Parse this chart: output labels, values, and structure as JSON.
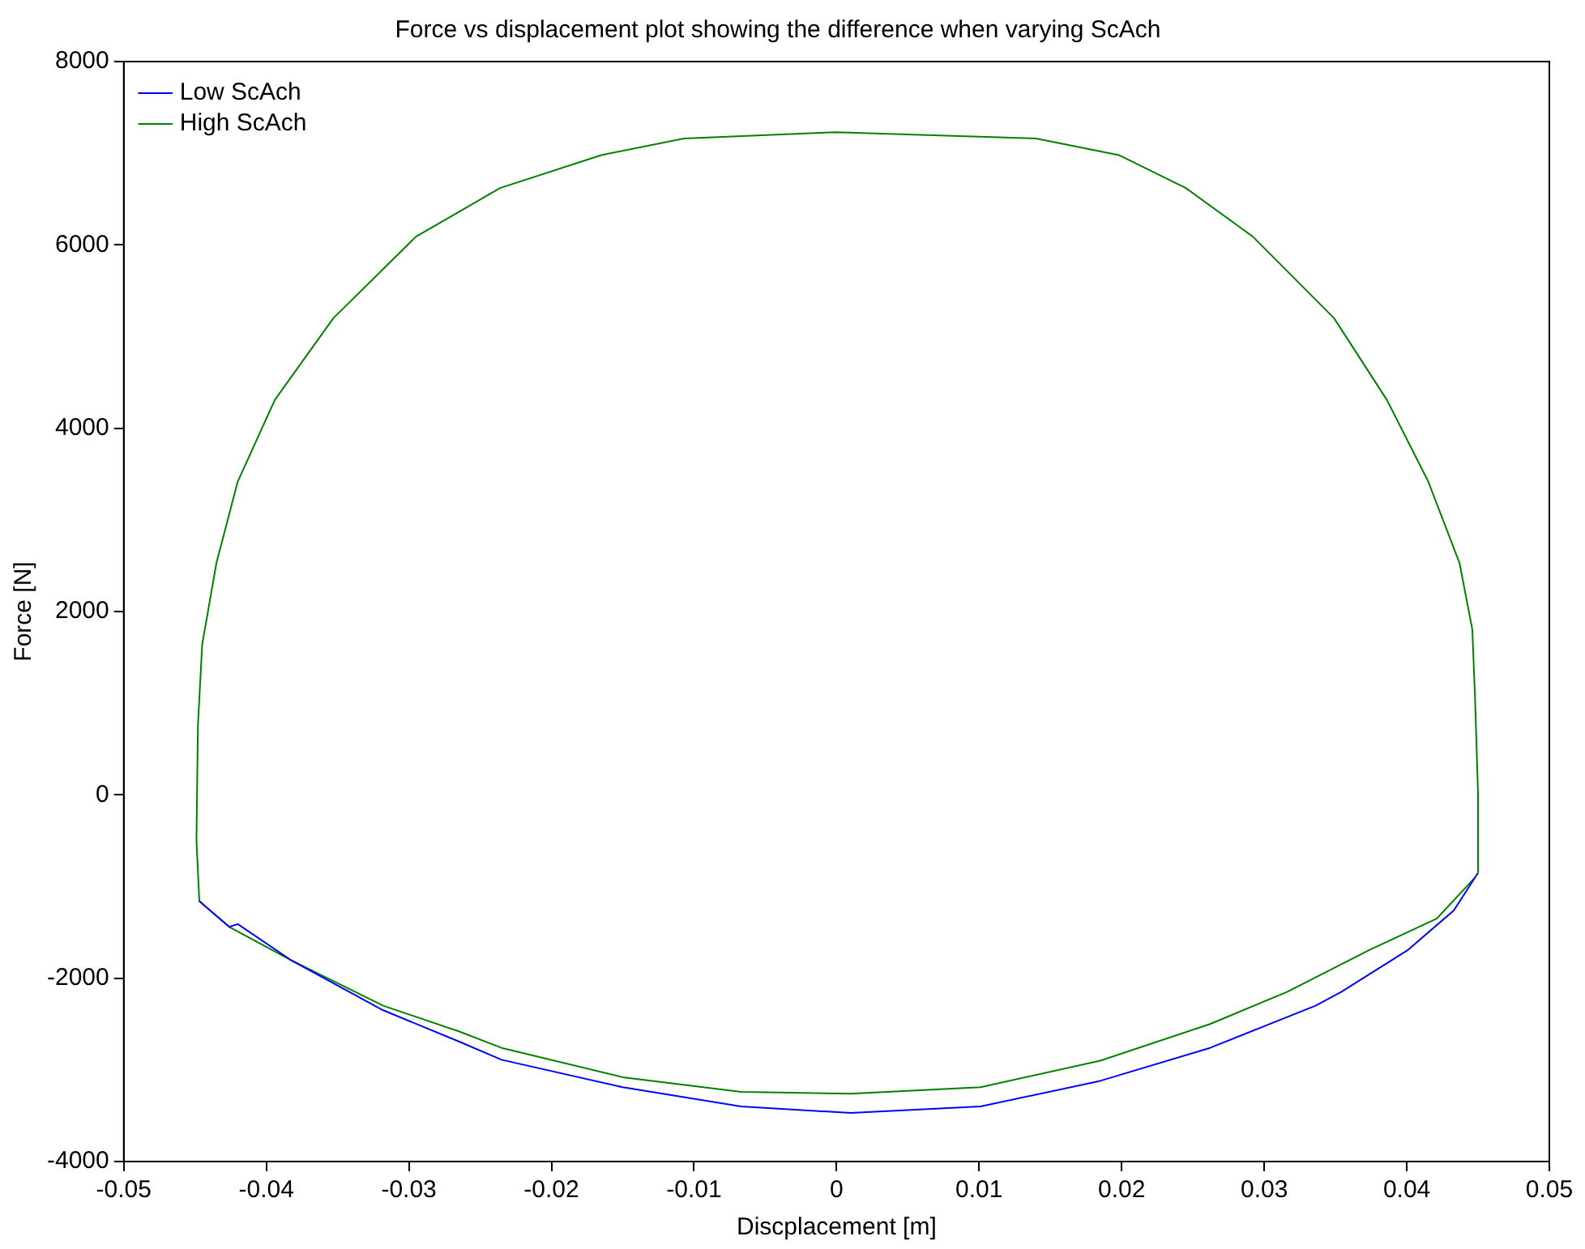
{
  "chart_data": {
    "type": "line",
    "title": "Force vs displacement plot showing the difference when varying ScAch",
    "xlabel": "Discplacement [m]",
    "ylabel": "Force [N]",
    "xlim": [
      -0.05,
      0.05
    ],
    "xticks": [
      -0.05,
      -0.04,
      -0.03,
      -0.02,
      -0.01,
      0,
      0.01,
      0.02,
      0.03,
      0.04,
      0.05
    ],
    "ylim": [
      -4000,
      8000
    ],
    "yticks": [
      -4000,
      -2000,
      0,
      2000,
      4000,
      6000,
      8000
    ],
    "grid": false,
    "legend": "top left",
    "marker": "none",
    "line_style": "solid",
    "series": [
      {
        "name": "Low ScAch",
        "color": "#0000ff",
        "x": [
          -0.0447,
          -0.0426,
          -0.042,
          -0.0383,
          -0.0318,
          -0.0265,
          -0.0235,
          -0.015,
          -0.0067,
          0.001,
          0.0101,
          0.0185,
          0.0262,
          0.0336,
          0.0354,
          0.0401,
          0.0433,
          0.045
        ],
        "values": [
          -1160,
          -1440,
          -1410,
          -1800,
          -2350,
          -2690,
          -2890,
          -3190,
          -3400,
          -3470,
          -3400,
          -3120,
          -2760,
          -2300,
          -2150,
          -1690,
          -1260,
          -850
        ]
      },
      {
        "name": "High ScAch",
        "color": "#008000",
        "x": [
          0.045,
          0.045,
          0.0448,
          0.0446,
          0.0437,
          0.0415,
          0.0386,
          0.0349,
          0.0292,
          0.0245,
          0.0198,
          0.014,
          0,
          -0.0107,
          -0.0165,
          -0.0236,
          -0.0295,
          -0.0353,
          -0.0394,
          -0.042,
          -0.0435,
          -0.0445,
          -0.0448,
          -0.0449,
          -0.0447,
          -0.0426,
          -0.0383,
          -0.0318,
          -0.0265,
          -0.0235,
          -0.015,
          -0.0067,
          0.001,
          0.0101,
          0.0185,
          0.0262,
          0.0316,
          0.0374,
          0.0421,
          0.0448
        ],
        "values": [
          -850,
          0,
          1000,
          1800,
          2530,
          3420,
          4310,
          5200,
          6090,
          6620,
          6980,
          7160,
          7230,
          7160,
          6980,
          6620,
          6090,
          5200,
          4310,
          3420,
          2530,
          1640,
          750,
          -500,
          -1160,
          -1440,
          -1800,
          -2300,
          -2580,
          -2760,
          -3080,
          -3240,
          -3260,
          -3190,
          -2900,
          -2500,
          -2150,
          -1690,
          -1350,
          -900
        ]
      }
    ]
  }
}
